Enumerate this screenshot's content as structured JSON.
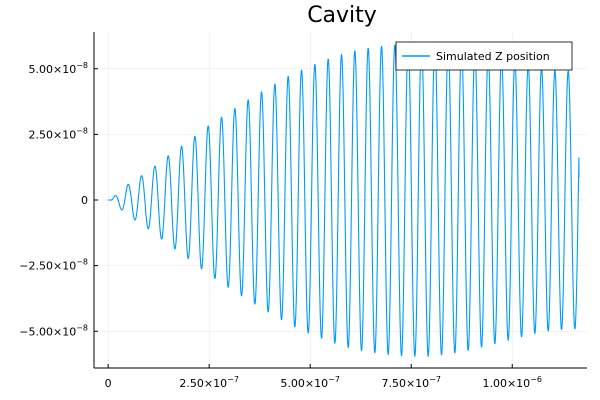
{
  "chart_data": {
    "type": "line",
    "title": "Cavity",
    "xlabel": "",
    "ylabel": "",
    "xlim": [
      -3.5e-08,
      1.185e-06
    ],
    "ylim": [
      -6.4e-08,
      6.4e-08
    ],
    "grid": true,
    "legend_placement": "top-right",
    "x_ticks": [
      {
        "value": 0,
        "mantissa": "0",
        "exponent": ""
      },
      {
        "value": 2.5e-07,
        "mantissa": "2.50×10",
        "exponent": "−7"
      },
      {
        "value": 5e-07,
        "mantissa": "5.00×10",
        "exponent": "−7"
      },
      {
        "value": 7.5e-07,
        "mantissa": "7.50×10",
        "exponent": "−7"
      },
      {
        "value": 1e-06,
        "mantissa": "1.00×10",
        "exponent": "−6"
      }
    ],
    "y_ticks": [
      {
        "value": 5e-08,
        "mantissa": "5.00×10",
        "exponent": "−8"
      },
      {
        "value": 2.5e-08,
        "mantissa": "2.50×10",
        "exponent": "−8"
      },
      {
        "value": 0,
        "mantissa": "0",
        "exponent": ""
      },
      {
        "value": -2.5e-08,
        "mantissa": "−2.50×10",
        "exponent": "−8"
      },
      {
        "value": -5e-08,
        "mantissa": "−5.00×10",
        "exponent": "−8"
      }
    ],
    "series": [
      {
        "name": "Simulated Z position",
        "color": "#009AFA",
        "x_start": 0,
        "x_end": 1.165e-06,
        "period": 3.3e-08,
        "envelope": {
          "x": [
            0,
            5e-09,
            5e-08,
            1e-07,
            1.5e-07,
            2e-07,
            2.5e-07,
            3e-07,
            3.5e-07,
            4e-07,
            4.5e-07,
            5e-07,
            5.5e-07,
            6e-07,
            6.5e-07,
            7e-07,
            7.5e-07,
            8e-07,
            8.5e-07,
            9e-07,
            9.5e-07,
            1e-06,
            1.05e-06,
            1.1e-06,
            1.165e-06
          ],
          "y": [
            0,
            0,
            6e-09,
            1.1e-08,
            1.7e-08,
            2.25e-08,
            2.85e-08,
            3.35e-08,
            3.85e-08,
            4.3e-08,
            4.75e-08,
            5.1e-08,
            5.4e-08,
            5.65e-08,
            5.8e-08,
            5.9e-08,
            5.95e-08,
            5.95e-08,
            5.85e-08,
            5.7e-08,
            5.5e-08,
            5.3e-08,
            5.1e-08,
            4.95e-08,
            4.9e-08
          ]
        },
        "end_value": 8.5e-09
      }
    ]
  }
}
